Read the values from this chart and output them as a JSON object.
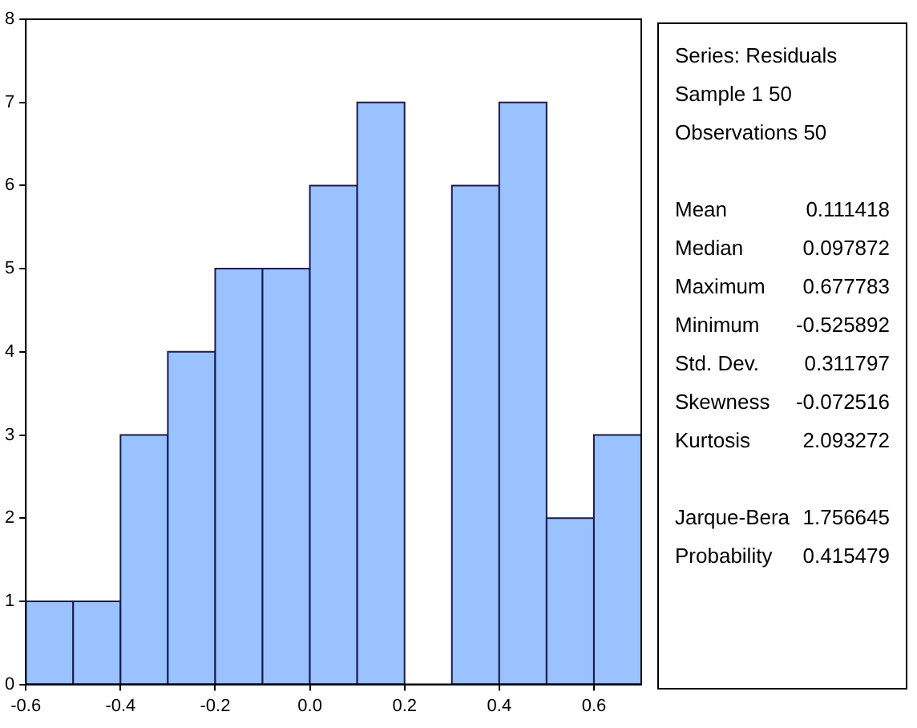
{
  "chart_data": {
    "type": "histogram",
    "bins": [
      -0.6,
      -0.5,
      -0.4,
      -0.3,
      -0.2,
      -0.1,
      0,
      0.1,
      0.2,
      0.3,
      0.4,
      0.5,
      0.6,
      0.7
    ],
    "values": [
      1,
      1,
      3,
      4,
      5,
      5,
      6,
      7,
      0,
      6,
      7,
      2,
      3
    ],
    "color": "#99c2ff",
    "xlim": [
      -0.6,
      0.7
    ],
    "xticks": [
      -0.6,
      -0.4,
      -0.2,
      {
        "value": 0,
        "label": "0.0"
      },
      0.2,
      0.4,
      0.6
    ],
    "ylim": [
      0,
      8
    ],
    "yticks": [
      0,
      1,
      2,
      3,
      4,
      5,
      6,
      7,
      8
    ],
    "grid": false,
    "annotations": [
      "Series: Residuals",
      "Sample 1 50",
      "Observations 50",
      "Mean 0.111418",
      "Median 0.097872",
      "Maximum 0.677783",
      "Minimum -0.525892",
      "Std. Dev. 0.311797",
      "Skewness -0.072516",
      "Kurtosis 2.093272",
      "Jarque-Bera 1.756645",
      "Probability 0.415479"
    ]
  }
}
